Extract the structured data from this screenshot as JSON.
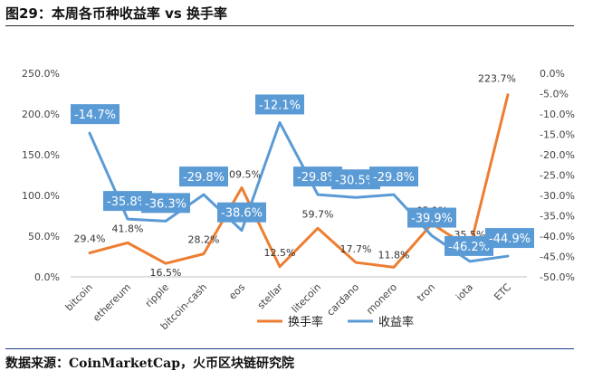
{
  "title": "图29：本周各币种收益率 vs 换手率",
  "source": "数据来源：CoinMarketCap，火币区块链研究院",
  "chart_data": {
    "type": "line",
    "categories": [
      "bitcoin",
      "ethereum",
      "ripple",
      "bitcoin-cash",
      "eos",
      "stellar",
      "litecoin",
      "cardano",
      "monero",
      "tron",
      "iota",
      "ETC"
    ],
    "series": [
      {
        "name": "换手率",
        "axis": "left",
        "color": "#ED7D31",
        "values": [
          29.4,
          41.8,
          16.5,
          28.2,
          109.5,
          12.5,
          59.7,
          17.7,
          11.8,
          65.1,
          35.5,
          223.7
        ],
        "labels": [
          "29.4%",
          "41.8%",
          "16.5%",
          "28.2%",
          "109.5%",
          "12.5%",
          "59.7%",
          "17.7%",
          "11.8%",
          "65.1%",
          "35.5%",
          "223.7%"
        ]
      },
      {
        "name": "收益率",
        "axis": "right",
        "color": "#5B9BD5",
        "values": [
          -14.7,
          -35.8,
          -36.3,
          -29.8,
          -38.6,
          -12.1,
          -29.8,
          -30.5,
          -29.8,
          -39.9,
          -46.2,
          -44.9
        ],
        "labels": [
          "-14.7%",
          "-35.8%",
          "-36.3%",
          "-29.8%",
          "-38.6%",
          "-12.1%",
          "-29.8%",
          "-30.5%",
          "-29.8%",
          "-39.9%",
          "-46.2%",
          "-44.9%"
        ]
      }
    ],
    "y_left": {
      "ylim": [
        0,
        250
      ],
      "ticks": [
        0,
        50,
        100,
        150,
        200,
        250
      ],
      "tick_labels": [
        "0.0%",
        "50.0%",
        "100.0%",
        "150.0%",
        "200.0%",
        "250.0%"
      ]
    },
    "y_right": {
      "ylim": [
        -50,
        0
      ],
      "ticks": [
        0,
        -5,
        -10,
        -15,
        -20,
        -25,
        -30,
        -35,
        -40,
        -45,
        -50
      ],
      "tick_labels": [
        "0.0%",
        "-5.0%",
        "-10.0%",
        "-15.0%",
        "-20.0%",
        "-25.0%",
        "-30.0%",
        "-35.0%",
        "-40.0%",
        "-45.0%",
        "-50.0%"
      ]
    },
    "legend_position": "bottom",
    "grid": false
  }
}
